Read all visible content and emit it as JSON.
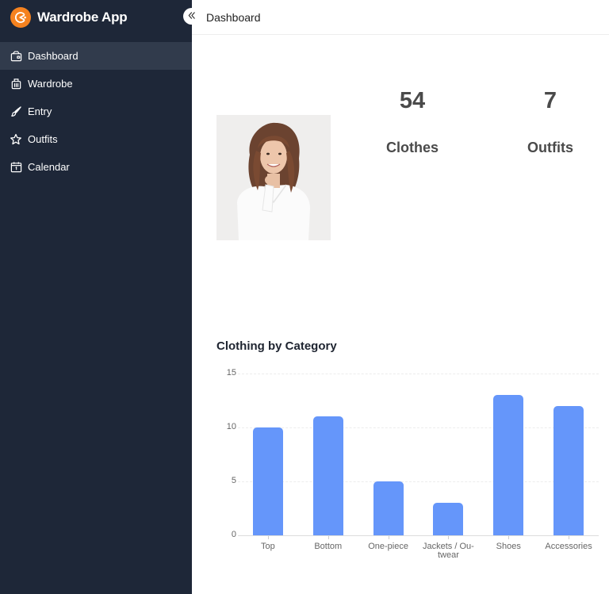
{
  "app": {
    "title": "Wardrobe App",
    "brand_color": "#f5821f",
    "sidebar_bg": "#1e2738",
    "sidebar_active_bg": "#313b4c"
  },
  "sidebar": {
    "collapse_icon": "chevrons-left-icon",
    "items": [
      {
        "label": "Dashboard",
        "icon": "wallet-icon",
        "active": true
      },
      {
        "label": "Wardrobe",
        "icon": "luggage-icon",
        "active": false
      },
      {
        "label": "Entry",
        "icon": "brush-icon",
        "active": false
      },
      {
        "label": "Outfits",
        "icon": "star-icon",
        "active": false
      },
      {
        "label": "Calendar",
        "icon": "calendar-icon",
        "active": false
      }
    ]
  },
  "header": {
    "title": "Dashboard"
  },
  "profile": {
    "avatar_alt": "profile photo"
  },
  "stats": [
    {
      "value": "54",
      "label": "Clothes"
    },
    {
      "value": "7",
      "label": "Outfits"
    }
  ],
  "chart": {
    "title": "Clothing by Category",
    "bar_color": "#6596fa"
  },
  "chart_data": {
    "type": "bar",
    "title": "Clothing by Category",
    "categories": [
      "Top",
      "Bottom",
      "One-piece",
      "Jackets / Outwear",
      "Shoes",
      "Accessories"
    ],
    "category_labels_display": [
      [
        "Top"
      ],
      [
        "Bottom"
      ],
      [
        "One-piece"
      ],
      [
        "Jackets / Ou-",
        "twear"
      ],
      [
        "Shoes"
      ],
      [
        "Accessories"
      ]
    ],
    "values": [
      10,
      11,
      5,
      3,
      13,
      12
    ],
    "xlabel": "",
    "ylabel": "",
    "ylim": [
      0,
      15
    ],
    "yticks": [
      0,
      5,
      10,
      15
    ],
    "grid": true,
    "legend": "none"
  }
}
